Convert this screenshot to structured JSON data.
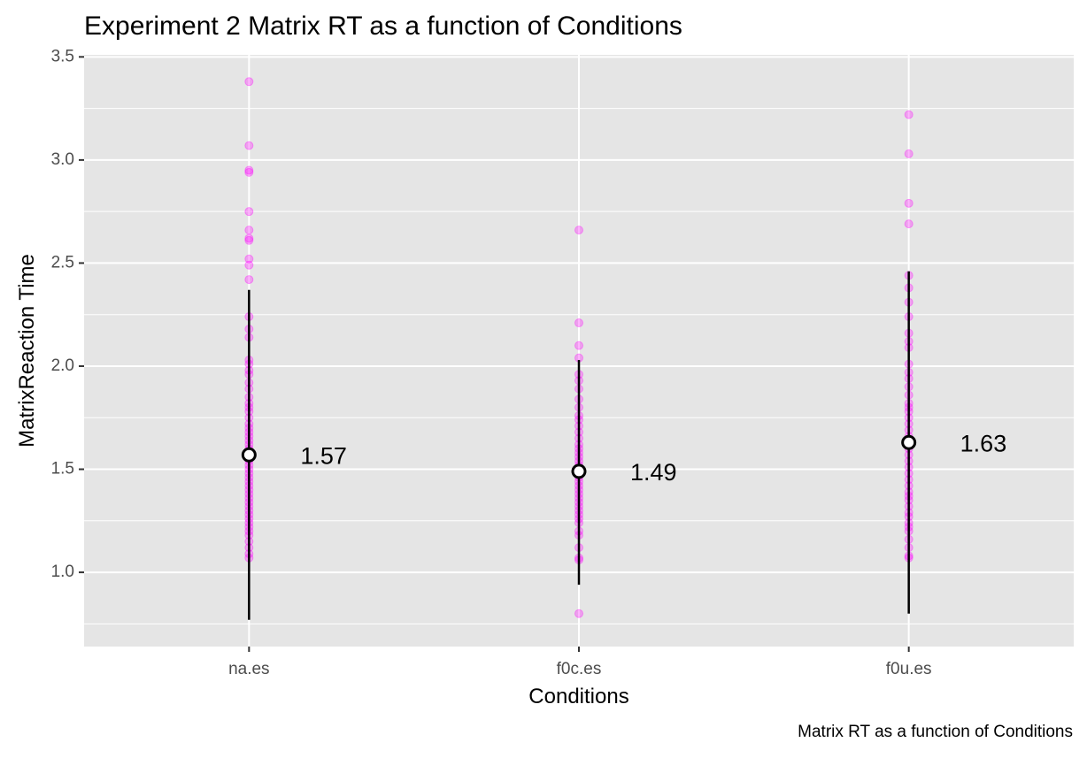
{
  "chart_data": {
    "type": "scatter",
    "title": "Experiment 2 Matrix RT as a function of Conditions",
    "xlabel": "Conditions",
    "ylabel": "MatrixReaction Time",
    "caption": "Matrix RT as a function of Conditions",
    "categories": [
      "na.es",
      "f0c.es",
      "f0u.es"
    ],
    "ylim": [
      0.64,
      3.51
    ],
    "yticks": [
      1.0,
      1.5,
      2.0,
      2.5,
      3.0,
      3.5
    ],
    "ytick_labels": [
      "1.0",
      "1.5",
      "2.0",
      "2.5",
      "3.0",
      "3.5"
    ],
    "grid": true,
    "colors": {
      "points": "#ff00ff",
      "panel_background": "#e5e5e5",
      "grid": "#ffffff",
      "error_bar": "#000000",
      "mean_fill": "#ffffff",
      "mean_stroke": "#000000"
    },
    "summary": [
      {
        "category": "na.es",
        "mean": 1.57,
        "lower": 0.77,
        "upper": 2.37,
        "label": "1.57"
      },
      {
        "category": "f0c.es",
        "mean": 1.49,
        "lower": 0.94,
        "upper": 2.03,
        "label": "1.49"
      },
      {
        "category": "f0u.es",
        "mean": 1.63,
        "lower": 0.8,
        "upper": 2.46,
        "label": "1.63"
      }
    ],
    "points": [
      {
        "category": "na.es",
        "values": [
          3.38,
          3.07,
          2.95,
          2.94,
          2.75,
          2.66,
          2.62,
          2.61,
          2.52,
          2.49,
          2.42,
          2.24,
          2.18,
          2.14,
          2.03,
          2.01,
          1.98,
          1.96,
          1.92,
          1.89,
          1.85,
          1.82,
          1.8,
          1.78,
          1.75,
          1.72,
          1.7,
          1.68,
          1.66,
          1.64,
          1.62,
          1.6,
          1.58,
          1.56,
          1.54,
          1.52,
          1.5,
          1.48,
          1.46,
          1.44,
          1.42,
          1.4,
          1.38,
          1.36,
          1.34,
          1.32,
          1.3,
          1.28,
          1.26,
          1.24,
          1.22,
          1.2,
          1.18,
          1.15,
          1.12,
          1.09,
          1.07
        ]
      },
      {
        "category": "f0c.es",
        "values": [
          2.66,
          2.21,
          2.1,
          2.04,
          1.96,
          1.93,
          1.89,
          1.84,
          1.8,
          1.76,
          1.74,
          1.71,
          1.68,
          1.65,
          1.62,
          1.6,
          1.58,
          1.56,
          1.54,
          1.52,
          1.5,
          1.48,
          1.46,
          1.44,
          1.42,
          1.4,
          1.38,
          1.36,
          1.34,
          1.32,
          1.3,
          1.28,
          1.26,
          1.24,
          1.2,
          1.18,
          1.12,
          1.07,
          1.06,
          0.8
        ]
      },
      {
        "category": "f0u.es",
        "values": [
          3.22,
          3.03,
          2.79,
          2.69,
          2.44,
          2.38,
          2.31,
          2.24,
          2.16,
          2.12,
          2.09,
          2.01,
          1.97,
          1.94,
          1.9,
          1.86,
          1.82,
          1.8,
          1.78,
          1.75,
          1.72,
          1.69,
          1.66,
          1.63,
          1.6,
          1.57,
          1.54,
          1.51,
          1.48,
          1.45,
          1.42,
          1.39,
          1.37,
          1.35,
          1.32,
          1.29,
          1.27,
          1.24,
          1.22,
          1.2,
          1.16,
          1.12,
          1.08,
          1.07
        ]
      }
    ]
  }
}
